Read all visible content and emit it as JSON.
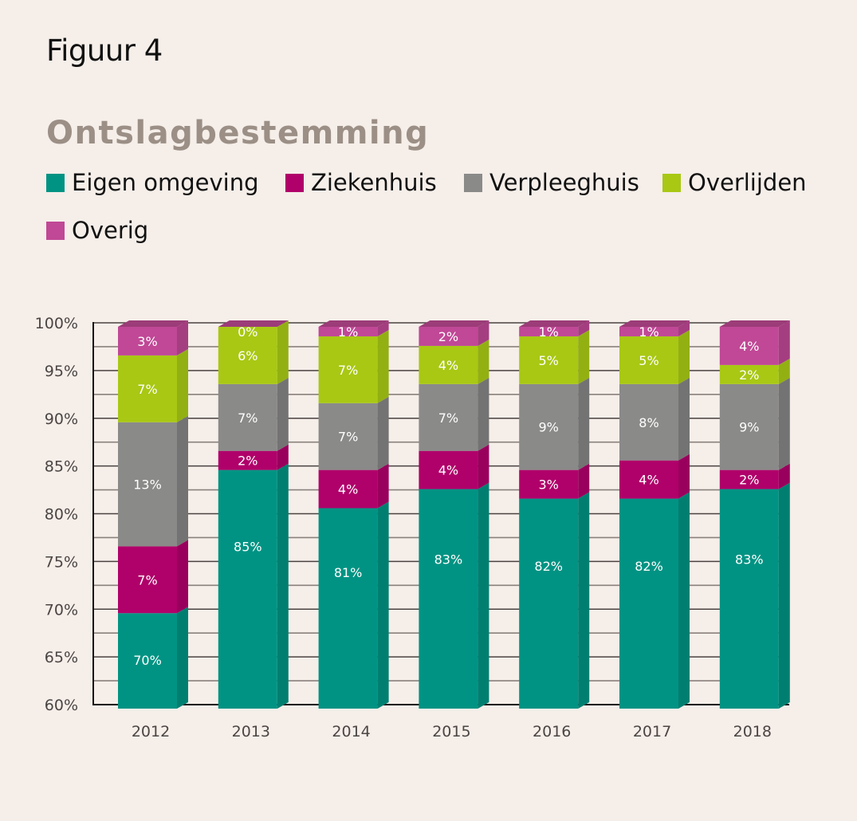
{
  "figure_label": "Figuur 4",
  "chart_data": {
    "type": "bar",
    "stacked": true,
    "title": "Ontslagbestemming",
    "xlabel": "",
    "ylabel": "",
    "ylim": [
      60,
      100
    ],
    "y_ticks": [
      "60%",
      "65%",
      "70%",
      "75%",
      "80%",
      "85%",
      "90%",
      "95%",
      "100%"
    ],
    "y_tick_values": [
      60,
      65,
      70,
      75,
      80,
      85,
      90,
      95,
      100
    ],
    "grid_step": 2.5,
    "grid": true,
    "legend_position": "top",
    "categories": [
      "2012",
      "2013",
      "2014",
      "2015",
      "2016",
      "2017",
      "2018"
    ],
    "series": [
      {
        "name": "Eigen omgeving",
        "color": "#009383",
        "side_color": "#007f71",
        "values": [
          70,
          85,
          81,
          83,
          82,
          82,
          83
        ]
      },
      {
        "name": "Ziekenhuis",
        "color": "#b0006a",
        "side_color": "#99005d",
        "values": [
          7,
          2,
          4,
          4,
          3,
          4,
          2
        ]
      },
      {
        "name": "Verpleeghuis",
        "color": "#8a8a89",
        "side_color": "#737373",
        "values": [
          13,
          7,
          7,
          7,
          9,
          8,
          9
        ]
      },
      {
        "name": "Overlijden",
        "color": "#a8c814",
        "side_color": "#93b012",
        "values": [
          7,
          6,
          7,
          4,
          5,
          5,
          2
        ]
      },
      {
        "name": "Overig",
        "color": "#c04896",
        "side_color": "#a43e80",
        "values": [
          3,
          0,
          1,
          2,
          1,
          1,
          4
        ]
      }
    ],
    "value_suffix": "%"
  }
}
